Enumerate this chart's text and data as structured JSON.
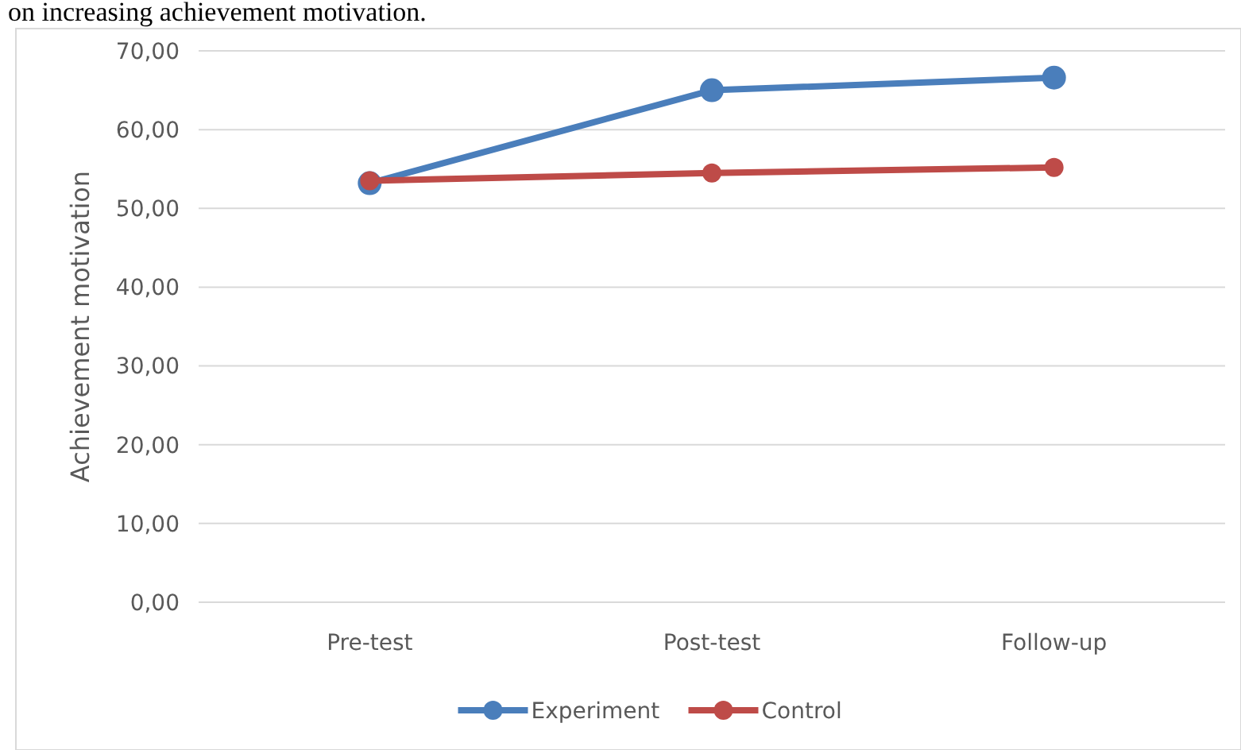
{
  "chart_data": {
    "type": "line",
    "title": "on increasing achievement motivation.",
    "ylabel": "Achievement motivation",
    "categories": [
      "Pre-test",
      "Post-test",
      "Follow-up"
    ],
    "series": [
      {
        "name": "Experiment",
        "color": "#4a7ebb",
        "values": [
          53.2,
          65.0,
          66.6
        ]
      },
      {
        "name": "Control",
        "color": "#be4b48",
        "values": [
          53.5,
          54.5,
          55.2
        ]
      }
    ],
    "ylim": [
      0,
      70
    ],
    "yticks": [
      {
        "value": 0,
        "label": "0,00"
      },
      {
        "value": 10,
        "label": "10,00"
      },
      {
        "value": 20,
        "label": "20,00"
      },
      {
        "value": 30,
        "label": "30,00"
      },
      {
        "value": 40,
        "label": "40,00"
      },
      {
        "value": 50,
        "label": "50,00"
      },
      {
        "value": 60,
        "label": "60,00"
      },
      {
        "value": 70,
        "label": "70,00"
      }
    ],
    "grid": "y",
    "legend": "bottom",
    "marker": "circle",
    "line_style": "solid"
  }
}
